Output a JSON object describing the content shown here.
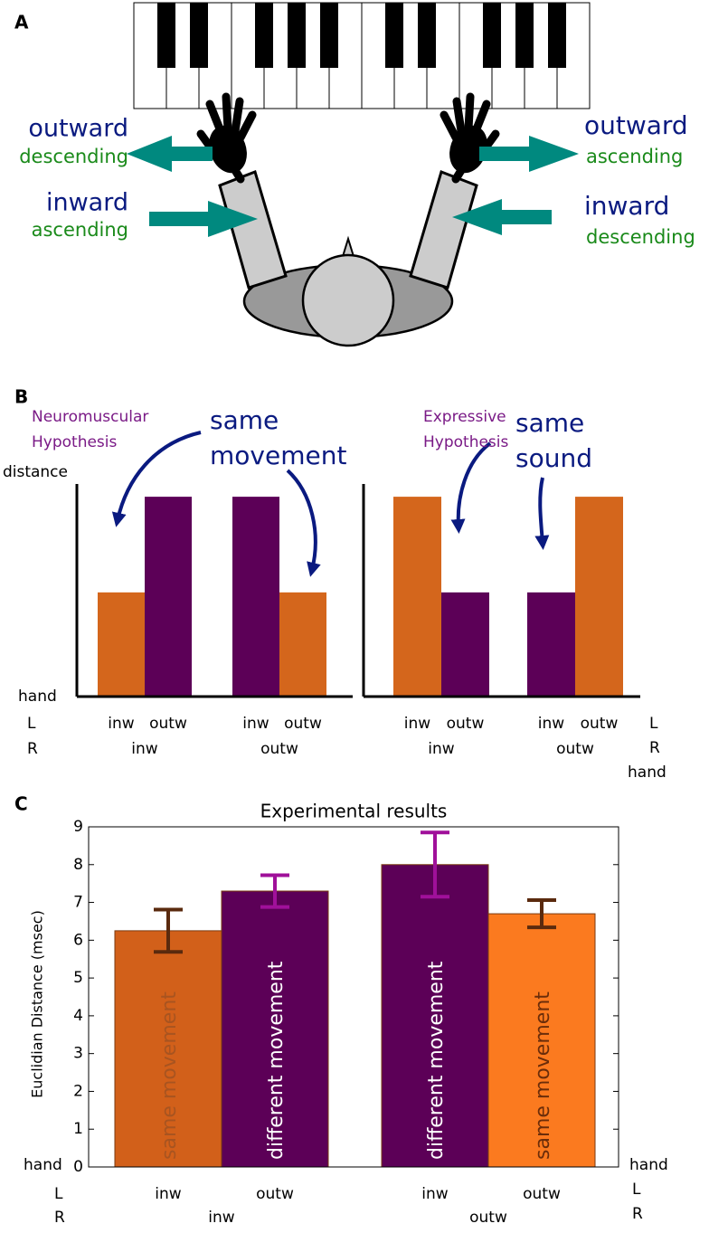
{
  "panel_labels": [
    "A",
    "B",
    "C"
  ],
  "diagram": {
    "left": {
      "outer": {
        "direction": "outward",
        "pitch": "descending"
      },
      "inner": {
        "direction": "inward",
        "pitch": "ascending"
      }
    },
    "right": {
      "outer": {
        "direction": "outward",
        "pitch": "ascending"
      },
      "inner": {
        "direction": "inward",
        "pitch": "descending"
      }
    }
  },
  "chart_data": [
    {
      "type": "bar",
      "ylabel": "distance",
      "annotations": [
        {
          "text": [
            "Neuromuscular",
            "Hypothesis"
          ],
          "color": "#7a1a86"
        },
        {
          "text": [
            "same",
            "movement"
          ],
          "color": "#0a1a80"
        }
      ],
      "categories": [
        "inw",
        "outw",
        "inw",
        "outw"
      ],
      "groups": [
        "inw",
        "outw"
      ],
      "values": [
        0.49,
        0.94,
        0.94,
        0.49
      ],
      "colors": [
        "#d4661c",
        "#5c0057",
        "#5c0057",
        "#d4661c"
      ],
      "ylim": [
        0,
        1
      ],
      "row_labels": [
        "hand",
        "L",
        "R"
      ]
    },
    {
      "type": "bar",
      "annotations": [
        {
          "text": [
            "Expressive",
            "Hypothesis"
          ],
          "color": "#7a1a86"
        },
        {
          "text": [
            "same",
            "sound"
          ],
          "color": "#0a1a80"
        }
      ],
      "categories": [
        "inw",
        "outw",
        "inw",
        "outw"
      ],
      "groups": [
        "inw",
        "outw"
      ],
      "values": [
        0.94,
        0.49,
        0.49,
        0.94
      ],
      "colors": [
        "#d4661c",
        "#5c0057",
        "#5c0057",
        "#d4661c"
      ],
      "ylim": [
        0,
        1
      ],
      "row_labels": [
        "L",
        "R",
        "hand"
      ]
    },
    {
      "type": "bar",
      "title": "Experimental results",
      "ylabel": "Euclidian Distance (msec)",
      "categories": [
        "inw",
        "outw",
        "inw",
        "outw"
      ],
      "groups": [
        "inw",
        "outw"
      ],
      "values": [
        6.25,
        7.3,
        8.0,
        6.7
      ],
      "errors": [
        0.56,
        0.42,
        0.85,
        0.36
      ],
      "colors": [
        "#d2601a",
        "#5c0057",
        "#5c0057",
        "#fb7a1f"
      ],
      "error_colors": [
        "#5a2a0e",
        "#a0109a",
        "#a0109a",
        "#5a2a0e"
      ],
      "bar_labels": [
        "same movement",
        "different movement",
        "different movement",
        "same movement"
      ],
      "bar_label_colors": [
        "#a85420",
        "#ffffff",
        "#ffffff",
        "#6b2d0a"
      ],
      "ylim": [
        0,
        9
      ],
      "yticks": [
        0,
        1,
        2,
        3,
        4,
        5,
        6,
        7,
        8,
        9
      ],
      "row_labels_left": [
        "hand",
        "L",
        "R"
      ],
      "row_labels_right": [
        "hand",
        "L",
        "R"
      ]
    }
  ]
}
